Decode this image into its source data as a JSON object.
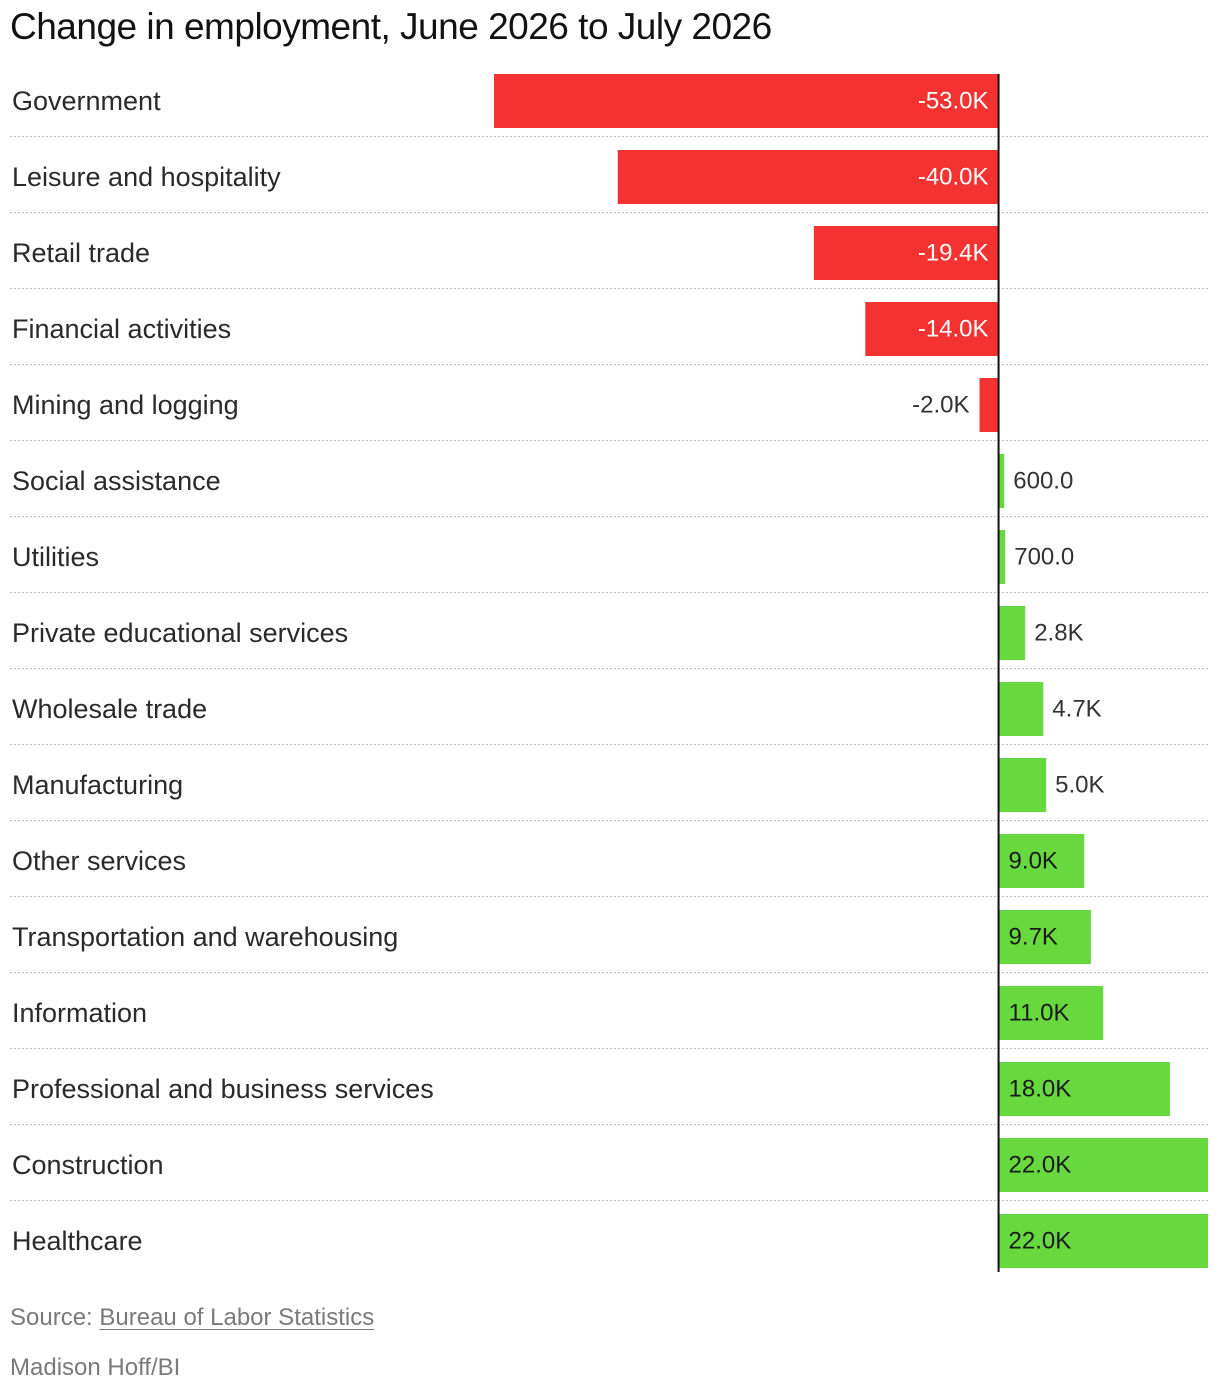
{
  "chart_data": {
    "type": "bar",
    "orientation": "horizontal",
    "title": "Change in employment, June 2026 to July 2026",
    "categories": [
      "Government",
      "Leisure and hospitality",
      "Retail trade",
      "Financial activities",
      "Mining and logging",
      "Social assistance",
      "Utilities",
      "Private educational services",
      "Wholesale trade",
      "Manufacturing",
      "Other services",
      "Transportation and warehousing",
      "Information",
      "Professional and business services",
      "Construction",
      "Healthcare"
    ],
    "values": [
      -53000,
      -40000,
      -19400,
      -14000,
      -2000,
      600,
      700,
      2800,
      4700,
      5000,
      9000,
      9700,
      11000,
      18000,
      22000,
      22000
    ],
    "value_labels": [
      "-53.0K",
      "-40.0K",
      "-19.4K",
      "-14.0K",
      "-2.0K",
      "600.0",
      "700.0",
      "2.8K",
      "4.7K",
      "5.0K",
      "9.0K",
      "9.7K",
      "11.0K",
      "18.0K",
      "22.0K",
      "22.0K"
    ],
    "xlim": [
      -53000,
      22000
    ],
    "colors": {
      "negative": "#f53232",
      "positive": "#67d93f",
      "zero_line": "#111111",
      "row_divider": "#bdbdbd"
    },
    "grid": false,
    "legend": "none"
  },
  "footer": {
    "source_prefix": "Source: ",
    "source_link": "Bureau of Labor Statistics",
    "credit": "Madison Hoff/BI"
  }
}
